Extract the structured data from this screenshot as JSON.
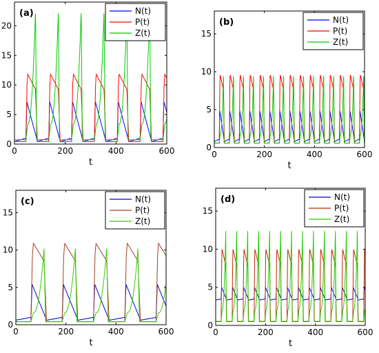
{
  "figure": {
    "xlabel": "t"
  },
  "chart_data": [
    {
      "type": "line",
      "panel_label": "(a)",
      "xlabel": "t",
      "xlim": [
        0,
        600
      ],
      "ylim": [
        0,
        24
      ],
      "xticks": [
        0,
        200,
        400,
        600
      ],
      "yticks": [
        0,
        5,
        10,
        15,
        20
      ],
      "legend_position": "top-right",
      "period": 90,
      "phase": 45,
      "series": [
        {
          "name": "N(t)",
          "color": "#0000ff",
          "min": 0.3,
          "max": 7.2,
          "shape": "pulse"
        },
        {
          "name": "P(t)",
          "color": "#ff0000",
          "min": 0.2,
          "max": 11.8,
          "shape": "plateau"
        },
        {
          "name": "Z(t)",
          "color": "#00cc00",
          "min": 0.3,
          "max": 22.5,
          "shape": "spike"
        }
      ]
    },
    {
      "type": "line",
      "panel_label": "(b)",
      "xlabel": "t",
      "xlim": [
        0,
        600
      ],
      "ylim": [
        0,
        18
      ],
      "xticks": [
        0,
        200,
        400,
        600
      ],
      "yticks": [
        0,
        5,
        10,
        15
      ],
      "legend_position": "top-right",
      "period": 40,
      "phase": 20,
      "series": [
        {
          "name": "N(t)",
          "color": "#0000ff",
          "min": 0.7,
          "max": 4.9,
          "shape": "pulse"
        },
        {
          "name": "P(t)",
          "color": "#ff0000",
          "min": 0.4,
          "max": 9.6,
          "shape": "plateau"
        },
        {
          "name": "Z(t)",
          "color": "#00cc00",
          "min": 0.4,
          "max": 9.8,
          "shape": "spike"
        }
      ]
    },
    {
      "type": "line",
      "panel_label": "(c)",
      "xlabel": "t",
      "xlim": [
        0,
        600
      ],
      "ylim": [
        0,
        18
      ],
      "xticks": [
        0,
        200,
        400,
        600
      ],
      "yticks": [
        0,
        5,
        10,
        15
      ],
      "legend_position": "top-right",
      "period": 125,
      "phase": 65,
      "series": [
        {
          "name": "N(t)",
          "color": "#0000cc",
          "min": 0.5,
          "max": 5.4,
          "shape": "pulse"
        },
        {
          "name": "P(t)",
          "color": "#a04020",
          "min": 0.2,
          "max": 10.9,
          "shape": "plateau"
        },
        {
          "name": "Z(t)",
          "color": "#33cc00",
          "min": 0.2,
          "max": 10.2,
          "shape": "spike"
        }
      ]
    },
    {
      "type": "line",
      "panel_label": "(d)",
      "xlabel": "t",
      "xlim": [
        0,
        600
      ],
      "ylim": [
        0,
        18
      ],
      "xticks": [
        0,
        200,
        400,
        600
      ],
      "yticks": [
        0,
        5,
        10,
        15
      ],
      "legend_position": "top-right",
      "period": 44,
      "phase": 22,
      "series": [
        {
          "name": "N(t)",
          "color": "#0000cc",
          "min": 3.3,
          "max": 5.0,
          "shape": "pulse"
        },
        {
          "name": "P(t)",
          "color": "#cc2200",
          "min": 0.3,
          "max": 10.0,
          "shape": "plateau"
        },
        {
          "name": "Z(t)",
          "color": "#22cc00",
          "min": 0.3,
          "max": 12.5,
          "shape": "spike"
        }
      ]
    }
  ]
}
